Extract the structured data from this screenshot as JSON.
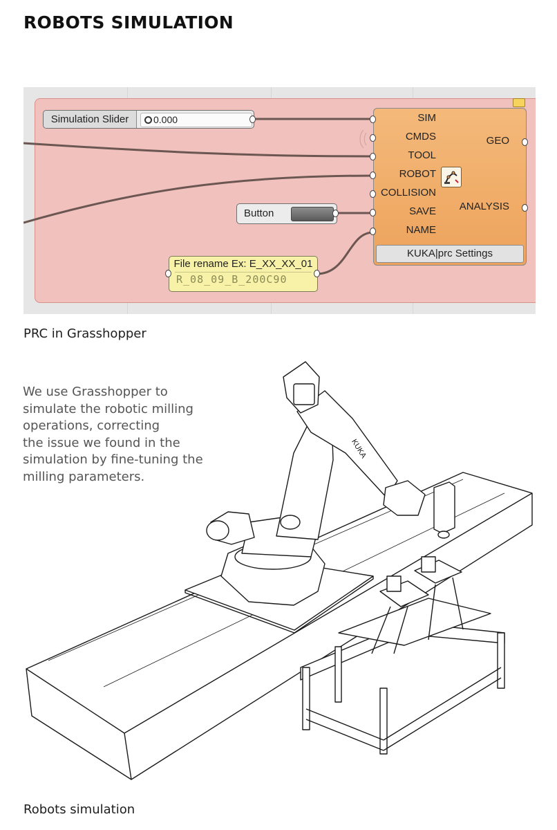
{
  "page": {
    "title": "ROBOTS SIMULATION",
    "figure1_caption": "PRC in Grasshopper",
    "intro_text": "We use Grasshopper to\nsimulate the robotic milling\noperations, correcting\nthe issue we found in the\nsimulation by fine-tuning the\nmilling parameters.",
    "figure2_caption": "Robots simulation"
  },
  "grasshopper": {
    "slider": {
      "label": "Simulation Slider",
      "value": "0.000"
    },
    "button": {
      "label": "Button"
    },
    "panel": {
      "header": "File rename Ex: E_XX_XX_01",
      "content": "R_08_09_B_200C90"
    },
    "component": {
      "inputs": [
        "SIM",
        "CMDS",
        "TOOL",
        "ROBOT",
        "COLLISION",
        "SAVE",
        "NAME"
      ],
      "outputs": [
        "GEO",
        "ANALYSIS"
      ],
      "footer": "KUKA|prc Settings",
      "icon": "kuka-prc-robot-icon"
    },
    "colors": {
      "group_fill": "#f0c1bd",
      "component_fill": "#eda35c",
      "panel_fill": "#f7f2a8"
    }
  },
  "illustration": {
    "robot_brand_mark": "KUKA",
    "subject": "kuka-robot-on-linear-rail-with-milling-fixture"
  }
}
